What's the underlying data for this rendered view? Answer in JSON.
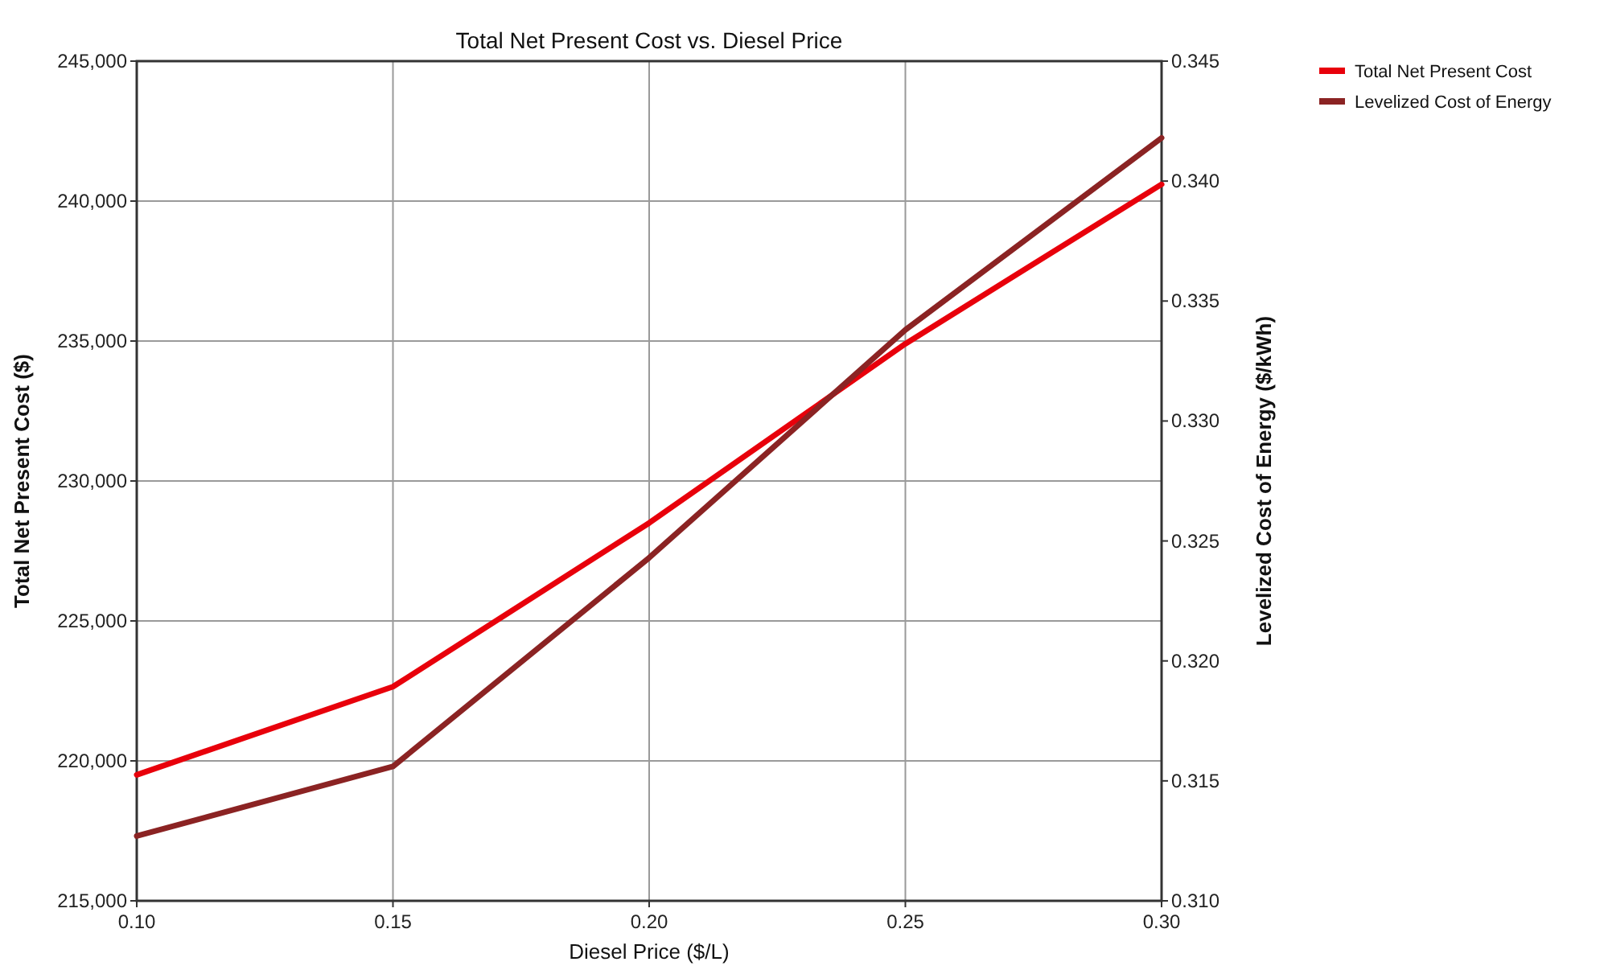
{
  "chart_data": {
    "type": "line",
    "title": "Total Net Present Cost vs. Diesel Price",
    "xlabel": "Diesel Price ($/L)",
    "ylabel": "Total Net Present Cost ($)",
    "y2label": "Levelized Cost of Energy ($/kWh)",
    "x": [
      0.1,
      0.15,
      0.2,
      0.25,
      0.3
    ],
    "series": [
      {
        "name": "Total Net Present Cost",
        "color": "#e8000b",
        "values": [
          219500,
          222650,
          228500,
          234900,
          240600
        ]
      },
      {
        "name": "Levelized Cost of Energy",
        "color": "#8b2323",
        "axis": "y2",
        "values": [
          0.3127,
          0.3156,
          0.3243,
          0.3338,
          0.3418
        ]
      }
    ],
    "xlim": [
      0.1,
      0.3
    ],
    "xticks": [
      {
        "value": 0.1,
        "label": "0.10"
      },
      {
        "value": 0.15,
        "label": "0.15"
      },
      {
        "value": 0.2,
        "label": "0.20"
      },
      {
        "value": 0.25,
        "label": "0.25"
      },
      {
        "value": 0.3,
        "label": "0.30"
      }
    ],
    "ylim": [
      215000,
      245000
    ],
    "yticks": [
      {
        "value": 215000,
        "label": "215,000"
      },
      {
        "value": 220000,
        "label": "220,000"
      },
      {
        "value": 225000,
        "label": "225,000"
      },
      {
        "value": 230000,
        "label": "230,000"
      },
      {
        "value": 235000,
        "label": "235,000"
      },
      {
        "value": 240000,
        "label": "240,000"
      },
      {
        "value": 245000,
        "label": "245,000"
      }
    ],
    "y2lim": [
      0.31,
      0.345
    ],
    "y2ticks": [
      {
        "value": 0.31,
        "label": "0.310"
      },
      {
        "value": 0.315,
        "label": "0.315"
      },
      {
        "value": 0.32,
        "label": "0.320"
      },
      {
        "value": 0.325,
        "label": "0.325"
      },
      {
        "value": 0.33,
        "label": "0.330"
      },
      {
        "value": 0.335,
        "label": "0.335"
      },
      {
        "value": 0.34,
        "label": "0.340"
      },
      {
        "value": 0.345,
        "label": "0.345"
      }
    ],
    "grid": true,
    "legend": "top right",
    "marker": "none",
    "line_style": "solid"
  }
}
